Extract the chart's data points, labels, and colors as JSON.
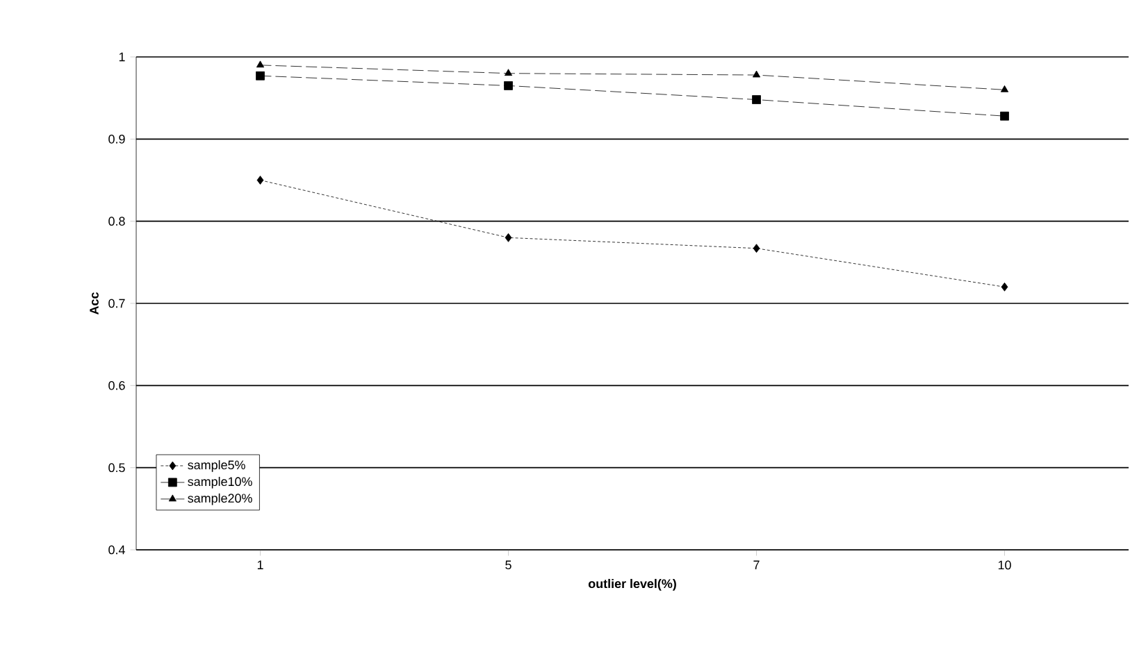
{
  "chart_data": {
    "type": "line",
    "xlabel": "outlier level(%)",
    "ylabel": "Acc",
    "categories": [
      "1",
      "5",
      "7",
      "10"
    ],
    "series": [
      {
        "name": "sample5%",
        "color": "#000000",
        "marker": "diamond",
        "line_style": "dotted",
        "values": [
          0.85,
          0.78,
          0.767,
          0.72
        ]
      },
      {
        "name": "sample10%",
        "color": "#000000",
        "marker": "square",
        "line_style": "dashed",
        "values": [
          0.977,
          0.965,
          0.948,
          0.928
        ]
      },
      {
        "name": "sample20%",
        "color": "#000000",
        "marker": "triangle",
        "line_style": "dashed",
        "values": [
          0.99,
          0.98,
          0.978,
          0.96
        ]
      }
    ],
    "ylim": [
      0.4,
      1
    ],
    "yticks": [
      0.4,
      0.5,
      0.6,
      0.7,
      0.8,
      0.9,
      1
    ],
    "grid": "y",
    "legend": "bottom left"
  }
}
